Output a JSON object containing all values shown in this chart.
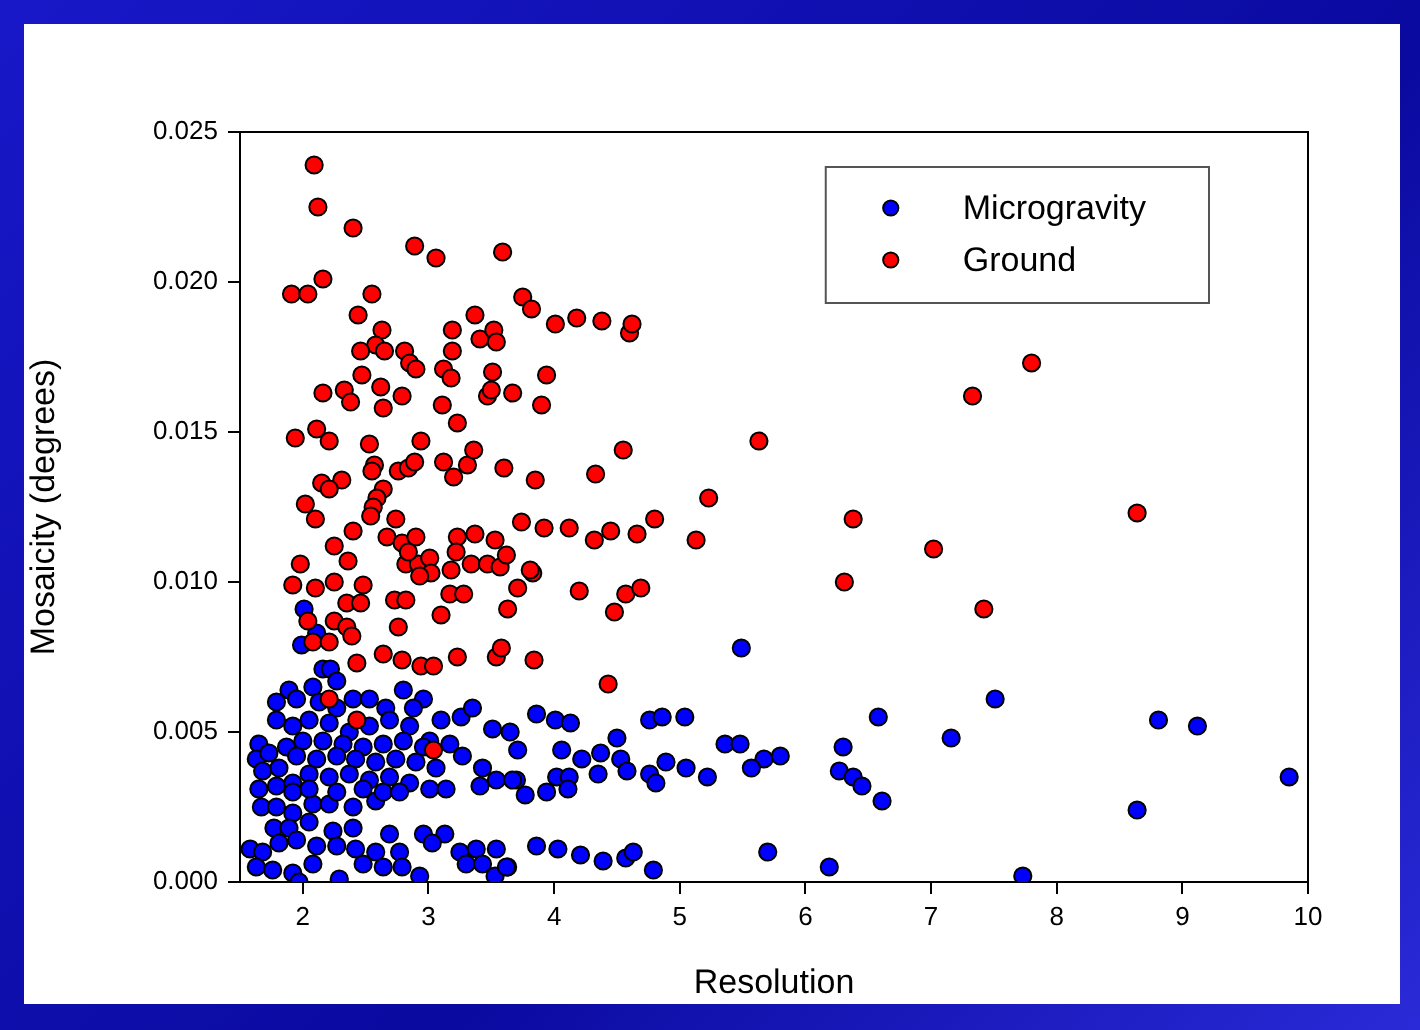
{
  "chart_data": {
    "type": "scatter",
    "xlabel": "Resolution",
    "ylabel": "Mosaicity (degrees)",
    "xlim": [
      1.5,
      10
    ],
    "xticks": [
      2,
      3,
      4,
      5,
      6,
      7,
      8,
      9,
      10
    ],
    "ylim": [
      0,
      0.025
    ],
    "yticks": [
      {
        "value": 0,
        "label": "0.000"
      },
      {
        "value": 0.005,
        "label": "0.005"
      },
      {
        "value": 0.01,
        "label": "0.010"
      },
      {
        "value": 0.015,
        "label": "0.015"
      },
      {
        "value": 0.02,
        "label": "0.020"
      },
      {
        "value": 0.025,
        "label": "0.025"
      }
    ],
    "grid": false,
    "legend": "top right",
    "marker": "circle",
    "series": [
      {
        "name": "Microgravity",
        "color": "#0000ff",
        "x": [
          5.49,
          7.51,
          6.58,
          8.81,
          9.12,
          7.16,
          6.3,
          5.36,
          5.48,
          5.67,
          5.8,
          5.57,
          6.27,
          6.38,
          6.45,
          6.61,
          9.85,
          8.64,
          5.7,
          6.19,
          7.73,
          3.86,
          4.01,
          4.13,
          4.76,
          4.86,
          5.04,
          4.5,
          4.06,
          4.22,
          4.37,
          4.53,
          4.58,
          4.35,
          4.89,
          5.05,
          5.22,
          4.76,
          4.81,
          4.02,
          4.12,
          3.94,
          4.11,
          3.77,
          3.7,
          3.86,
          4.03,
          4.21,
          4.39,
          4.57,
          4.63,
          4.79,
          3.63,
          3.53,
          2.01,
          1.99,
          2.11,
          2.16,
          2.22,
          2.27,
          2.08,
          1.89,
          1.79,
          1.95,
          2.13,
          2.27,
          2.4,
          2.53,
          2.66,
          2.8,
          2.96,
          2.88,
          3.1,
          3.26,
          3.35,
          3.51,
          3.65,
          3.71,
          3.54,
          3.41,
          3.67,
          3.43,
          3.27,
          3.17,
          3.01,
          2.85,
          2.69,
          2.53,
          2.37,
          2.21,
          2.05,
          1.92,
          1.79,
          1.65,
          1.63,
          1.73,
          1.87,
          2.0,
          2.16,
          2.32,
          2.48,
          2.64,
          2.8,
          2.96,
          3.06,
          2.9,
          2.74,
          2.58,
          2.42,
          2.27,
          2.11,
          1.95,
          1.81,
          1.68,
          1.65,
          1.79,
          1.92,
          2.05,
          2.21,
          2.37,
          2.53,
          2.69,
          2.85,
          3.01,
          3.14,
          1.67,
          1.79,
          1.92,
          2.08,
          2.21,
          2.4,
          2.58,
          1.92,
          2.05,
          2.27,
          2.48,
          2.64,
          2.77,
          1.77,
          1.89,
          2.05,
          2.24,
          2.4,
          2.69,
          2.96,
          3.13,
          3.03,
          1.58,
          1.68,
          1.81,
          1.95,
          2.11,
          2.27,
          2.42,
          2.58,
          2.77,
          1.63,
          1.76,
          1.92,
          2.08,
          2.29,
          2.48,
          2.64,
          2.79,
          2.93,
          3.25,
          3.38,
          3.54,
          3.3,
          3.43,
          3.62,
          1.97
        ],
        "values": [
          0.0078,
          0.0061,
          0.0055,
          0.0054,
          0.0052,
          0.0048,
          0.0045,
          0.0046,
          0.0046,
          0.0041,
          0.0042,
          0.0038,
          0.0037,
          0.0035,
          0.0032,
          0.0027,
          0.0035,
          0.0024,
          0.001,
          0.0005,
          0.0002,
          0.0056,
          0.0054,
          0.0053,
          0.0054,
          0.0055,
          0.0055,
          0.0048,
          0.0044,
          0.0041,
          0.0043,
          0.0041,
          0.0037,
          0.0036,
          0.004,
          0.0038,
          0.0035,
          0.0036,
          0.0033,
          0.0035,
          0.0035,
          0.003,
          0.0031,
          0.0029,
          0.0034,
          0.0012,
          0.0011,
          0.0009,
          0.0007,
          0.0008,
          0.001,
          0.0004,
          0.0005,
          0.0002,
          0.0091,
          0.0079,
          0.0083,
          0.0071,
          0.0071,
          0.0067,
          0.0065,
          0.0064,
          0.006,
          0.0061,
          0.006,
          0.0058,
          0.0061,
          0.0061,
          0.0058,
          0.0064,
          0.0061,
          0.0058,
          0.0054,
          0.0055,
          0.0058,
          0.0051,
          0.005,
          0.0044,
          0.0034,
          0.0032,
          0.0034,
          0.0038,
          0.0042,
          0.0046,
          0.0047,
          0.0052,
          0.0054,
          0.0052,
          0.005,
          0.0053,
          0.0054,
          0.0052,
          0.0054,
          0.0046,
          0.0041,
          0.0043,
          0.0045,
          0.0047,
          0.0047,
          0.0046,
          0.0045,
          0.0046,
          0.0047,
          0.0045,
          0.0038,
          0.004,
          0.0041,
          0.004,
          0.0041,
          0.0042,
          0.0041,
          0.0042,
          0.0038,
          0.0037,
          0.0031,
          0.0032,
          0.0033,
          0.0036,
          0.0035,
          0.0036,
          0.0034,
          0.0035,
          0.0033,
          0.0031,
          0.0031,
          0.0025,
          0.0025,
          0.0023,
          0.0026,
          0.0026,
          0.0025,
          0.0027,
          0.003,
          0.0031,
          0.003,
          0.0031,
          0.003,
          0.003,
          0.0018,
          0.0018,
          0.002,
          0.0017,
          0.0018,
          0.0016,
          0.0016,
          0.0016,
          0.0013,
          0.0011,
          0.001,
          0.0013,
          0.0014,
          0.0012,
          0.0012,
          0.0011,
          0.001,
          0.001,
          0.0005,
          0.0004,
          0.0003,
          0.0006,
          0.0001,
          0.0006,
          0.0005,
          0.0005,
          0.0002,
          0.001,
          0.0011,
          0.0011,
          0.0006,
          0.0006,
          0.0005,
          0.0
        ]
      },
      {
        "name": "Ground",
        "color": "#ff0000",
        "x": [
          2.09,
          2.12,
          2.4,
          2.89,
          3.06,
          3.59,
          1.91,
          2.04,
          2.16,
          2.55,
          2.44,
          2.63,
          2.58,
          2.65,
          2.46,
          2.81,
          2.85,
          2.9,
          2.47,
          2.16,
          2.33,
          2.38,
          2.62,
          2.79,
          2.64,
          3.19,
          3.37,
          3.19,
          3.12,
          3.18,
          3.11,
          3.23,
          3.41,
          3.52,
          3.54,
          3.51,
          3.47,
          3.5,
          3.67,
          3.75,
          3.82,
          4.01,
          4.18,
          4.38,
          4.6,
          4.62,
          3.94,
          3.9,
          1.94,
          2.11,
          2.21,
          2.53,
          2.94,
          2.57,
          2.55,
          2.76,
          2.84,
          2.89,
          3.12,
          3.31,
          3.36,
          3.2,
          3.6,
          3.85,
          4.33,
          4.55,
          5.23,
          2.15,
          2.31,
          2.21,
          2.02,
          2.64,
          2.59,
          2.56,
          2.54,
          2.1,
          2.4,
          2.74,
          3.74,
          3.92,
          4.12,
          4.45,
          4.8,
          2.67,
          2.79,
          2.9,
          3.23,
          3.37,
          3.53,
          4.32,
          4.66,
          5.13,
          2.25,
          2.36,
          1.98,
          1.92,
          2.1,
          2.25,
          2.48,
          2.35,
          2.46,
          2.25,
          2.04,
          2.08,
          2.21,
          2.35,
          2.39,
          2.43,
          2.64,
          2.79,
          2.94,
          3.04,
          3.23,
          3.54,
          3.58,
          3.84,
          2.76,
          3.1,
          2.73,
          2.82,
          3.17,
          3.28,
          3.63,
          3.71,
          3.83,
          4.2,
          4.48,
          4.57,
          4.69,
          4.43,
          2.82,
          2.92,
          3.01,
          3.18,
          3.34,
          3.47,
          3.57,
          3.62,
          3.81,
          3.22,
          3.02,
          2.93,
          2.84,
          2.21,
          2.43,
          3.04,
          5.63,
          7.33,
          7.8,
          6.38,
          8.64,
          7.02,
          6.31,
          7.42
        ],
        "values": [
          0.0239,
          0.0225,
          0.0218,
          0.0212,
          0.0208,
          0.021,
          0.0196,
          0.0196,
          0.0201,
          0.0196,
          0.0189,
          0.0184,
          0.0179,
          0.0177,
          0.0177,
          0.0177,
          0.0173,
          0.0171,
          0.0169,
          0.0163,
          0.0164,
          0.016,
          0.0165,
          0.0162,
          0.0158,
          0.0184,
          0.0189,
          0.0177,
          0.0171,
          0.0168,
          0.0159,
          0.0153,
          0.0181,
          0.0184,
          0.018,
          0.017,
          0.0162,
          0.0164,
          0.0163,
          0.0195,
          0.0191,
          0.0186,
          0.0188,
          0.0187,
          0.0183,
          0.0186,
          0.0169,
          0.0159,
          0.0148,
          0.0151,
          0.0147,
          0.0146,
          0.0147,
          0.0139,
          0.0137,
          0.0137,
          0.0138,
          0.014,
          0.014,
          0.0139,
          0.0144,
          0.0135,
          0.0138,
          0.0134,
          0.0136,
          0.0144,
          0.0128,
          0.0133,
          0.0134,
          0.0131,
          0.0126,
          0.0131,
          0.0128,
          0.0125,
          0.0122,
          0.0121,
          0.0117,
          0.0121,
          0.012,
          0.0118,
          0.0118,
          0.0117,
          0.0121,
          0.0115,
          0.0113,
          0.0115,
          0.0115,
          0.0116,
          0.0114,
          0.0114,
          0.0116,
          0.0114,
          0.0112,
          0.0107,
          0.0106,
          0.0099,
          0.0098,
          0.01,
          0.0099,
          0.0093,
          0.0093,
          0.0087,
          0.0087,
          0.008,
          0.008,
          0.0085,
          0.0082,
          0.0073,
          0.0076,
          0.0074,
          0.0072,
          0.0072,
          0.0075,
          0.0075,
          0.0078,
          0.0074,
          0.0085,
          0.0089,
          0.0094,
          0.0094,
          0.0096,
          0.0096,
          0.0091,
          0.0098,
          0.0103,
          0.0097,
          0.009,
          0.0096,
          0.0098,
          0.0066,
          0.0106,
          0.0106,
          0.0108,
          0.0104,
          0.0106,
          0.0106,
          0.0105,
          0.0109,
          0.0104,
          0.011,
          0.0103,
          0.0102,
          0.011,
          0.0061,
          0.0054,
          0.0044,
          0.0147,
          0.0162,
          0.0173,
          0.0121,
          0.0123,
          0.0111,
          0.01,
          0.0091
        ]
      }
    ]
  }
}
